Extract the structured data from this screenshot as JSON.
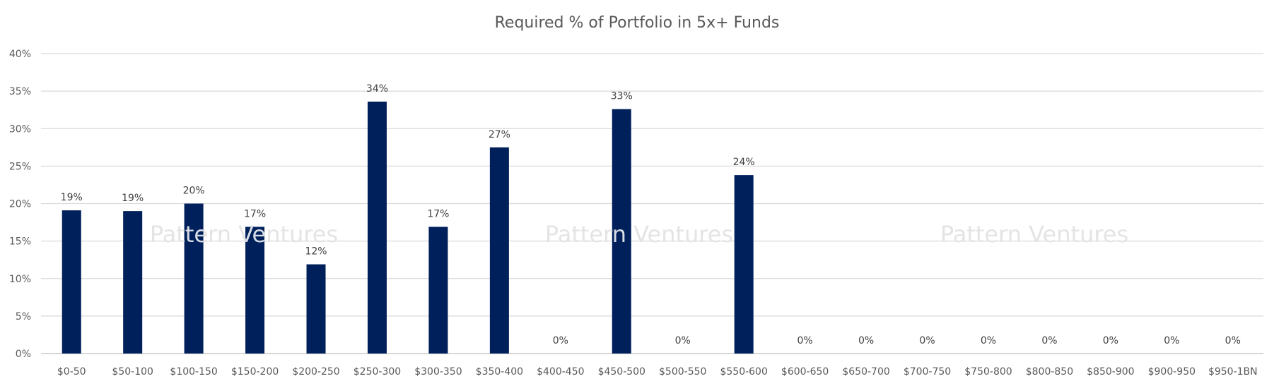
{
  "watermark": "Pattern Ventures",
  "colors": {
    "bar": "#00205B",
    "grid": "#D9D9D9",
    "axis": "#BFBFBF",
    "text": "#595959"
  },
  "chart_data": {
    "type": "bar",
    "title": "Required % of Portfolio in 5x+ Funds",
    "xlabel": "",
    "ylabel": "",
    "categories": [
      "$0-50",
      "$50-100",
      "$100-150",
      "$150-200",
      "$200-250",
      "$250-300",
      "$300-350",
      "$350-400",
      "$400-450",
      "$450-500",
      "$500-550",
      "$550-600",
      "$600-650",
      "$650-700",
      "$700-750",
      "$750-800",
      "$800-850",
      "$850-900",
      "$900-950",
      "$950-1BN"
    ],
    "values": [
      19.1,
      19.0,
      20.0,
      16.9,
      11.9,
      33.6,
      16.9,
      27.5,
      0,
      32.6,
      0,
      23.8,
      0,
      0,
      0,
      0,
      0,
      0,
      0,
      0
    ],
    "data_labels": [
      "19%",
      "19%",
      "20%",
      "17%",
      "12%",
      "34%",
      "17%",
      "27%",
      "0%",
      "33%",
      "0%",
      "24%",
      "0%",
      "0%",
      "0%",
      "0%",
      "0%",
      "0%",
      "0%",
      "0%"
    ],
    "y_ticks": [
      "0%",
      "5%",
      "10%",
      "15%",
      "20%",
      "25%",
      "30%",
      "35%",
      "40%"
    ],
    "ylim": [
      0,
      40
    ],
    "grid": true,
    "legend": "none"
  }
}
